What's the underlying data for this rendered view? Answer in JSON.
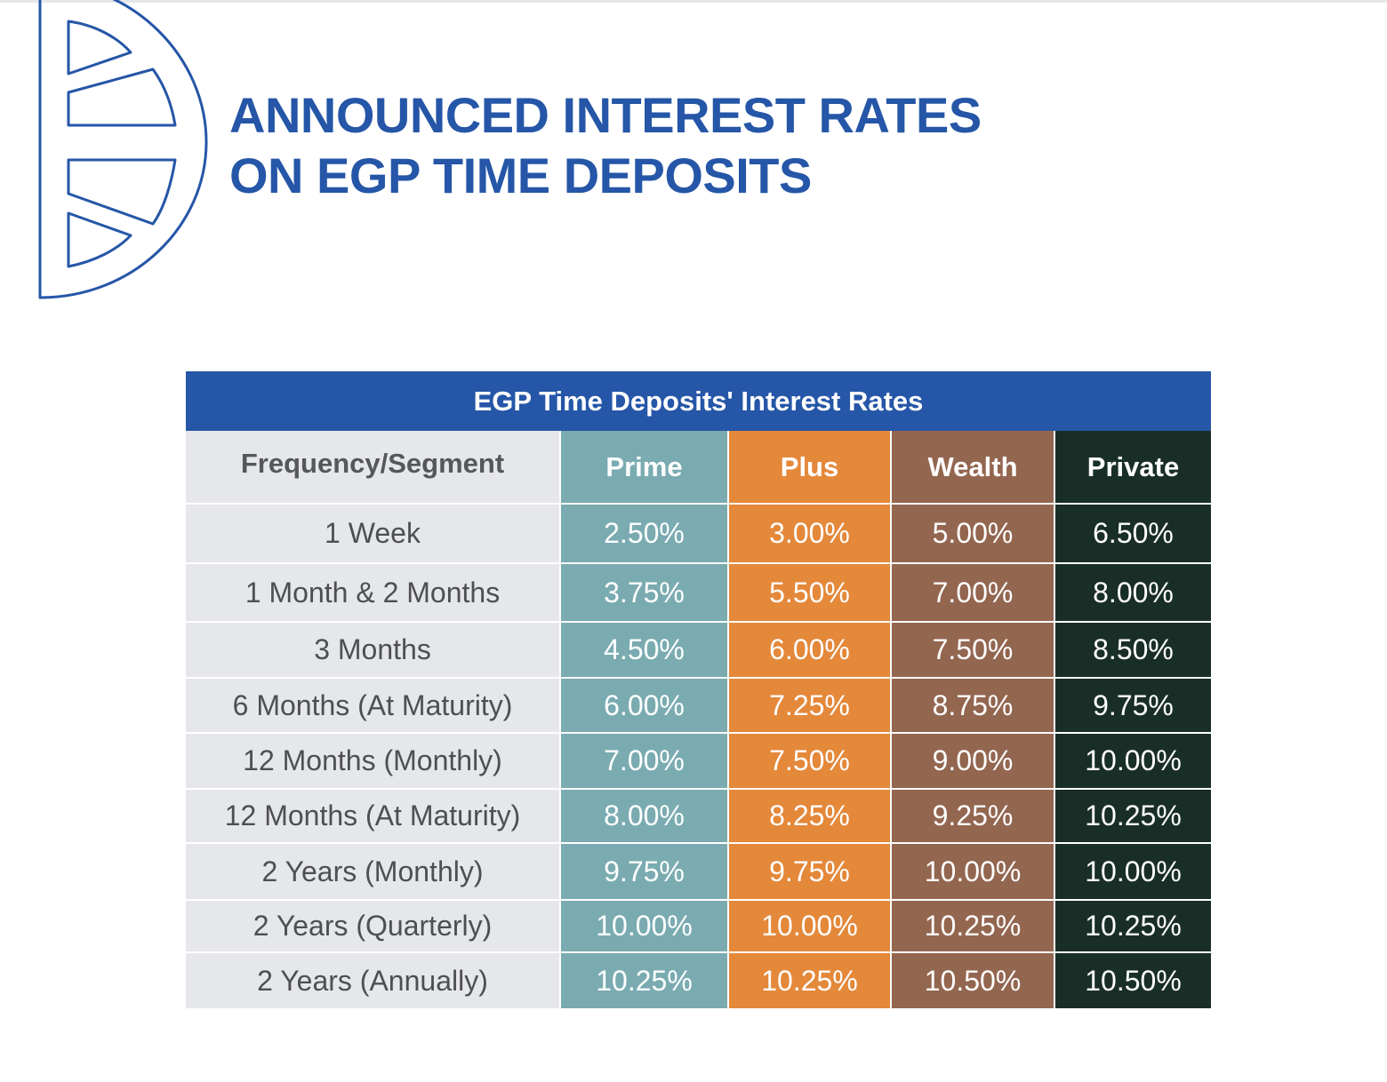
{
  "page": {
    "title_line1": "ANNOUNCED INTEREST RATES",
    "title_line2": "ON EGP TIME DEPOSITS",
    "accent_color": "#2556a7"
  },
  "table": {
    "caption": "EGP Time Deposits' Interest Rates",
    "columns": [
      "Frequency/Segment",
      "Prime",
      "Plus",
      "Wealth",
      "Private"
    ],
    "column_colors": {
      "frequency": "#e6e7ea",
      "prime": "#7aabb1",
      "plus": "#e4883a",
      "wealth": "#936650",
      "private": "#1a2e28"
    },
    "rows": [
      [
        "1 Week",
        "2.50%",
        "3.00%",
        "5.00%",
        "6.50%"
      ],
      [
        "1 Month & 2 Months",
        "3.75%",
        "5.50%",
        "7.00%",
        "8.00%"
      ],
      [
        "3 Months",
        "4.50%",
        "6.00%",
        "7.50%",
        "8.50%"
      ],
      [
        "6 Months (At Maturity)",
        "6.00%",
        "7.25%",
        "8.75%",
        "9.75%"
      ],
      [
        "12 Months (Monthly)",
        "7.00%",
        "7.50%",
        "9.00%",
        "10.00%"
      ],
      [
        "12 Months (At Maturity)",
        "8.00%",
        "8.25%",
        "9.25%",
        "10.25%"
      ],
      [
        "2 Years (Monthly)",
        "9.75%",
        "9.75%",
        "10.00%",
        "10.00%"
      ],
      [
        "2 Years (Quarterly)",
        "10.00%",
        "10.00%",
        "10.25%",
        "10.25%"
      ],
      [
        "2 Years (Annually)",
        "10.25%",
        "10.25%",
        "10.50%",
        "10.50%"
      ]
    ]
  }
}
